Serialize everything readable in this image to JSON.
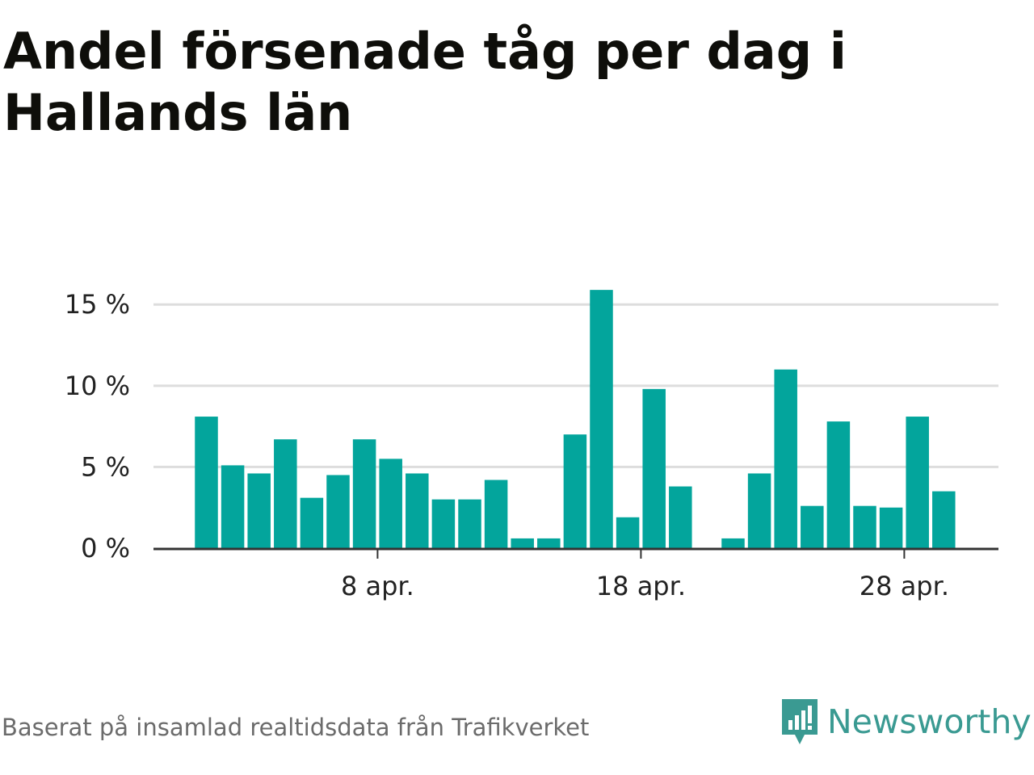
{
  "header": {
    "title": "Andel försenade tåg per dag i Hallands län"
  },
  "footer": {
    "source": "Baserat på insamlad realtidsdata från Trafikverket",
    "brand": "Newsworthy",
    "brand_icon": "newsworthy-logo-icon"
  },
  "colors": {
    "bar": "#03a59c",
    "grid": "#dddddd",
    "axis": "#333333",
    "brand": "#3a9a92"
  },
  "chart_data": {
    "type": "bar",
    "title": "Andel försenade tåg per dag i Hallands län",
    "xlabel": "",
    "ylabel": "",
    "categories": [
      "1 apr.",
      "2 apr.",
      "3 apr.",
      "4 apr.",
      "5 apr.",
      "6 apr.",
      "7 apr.",
      "8 apr.",
      "9 apr.",
      "10 apr.",
      "11 apr.",
      "12 apr.",
      "13 apr.",
      "14 apr.",
      "15 apr.",
      "16 apr.",
      "17 apr.",
      "18 apr.",
      "19 apr.",
      "20 apr.",
      "21 apr.",
      "22 apr.",
      "23 apr.",
      "24 apr.",
      "25 apr.",
      "26 apr.",
      "27 apr.",
      "28 apr.",
      "29 apr."
    ],
    "values": [
      8.1,
      5.1,
      4.6,
      6.7,
      3.1,
      4.5,
      6.7,
      5.5,
      4.6,
      3.0,
      3.0,
      4.2,
      0.6,
      0.6,
      7.0,
      15.9,
      1.9,
      9.8,
      3.8,
      0.0,
      0.6,
      4.6,
      11.0,
      2.6,
      7.8,
      2.6,
      2.5,
      8.1,
      3.5
    ],
    "ylim": [
      0,
      17
    ],
    "yticks": [
      0,
      5,
      10,
      15
    ],
    "ytick_labels": [
      "0 %",
      "5 %",
      "10 %",
      "15 %"
    ],
    "xticks": [
      "8 apr.",
      "18 apr.",
      "28 apr."
    ],
    "xtick_labels": [
      "8 apr.",
      "18 apr.",
      "28 apr."
    ],
    "grid": true,
    "legend": "none"
  }
}
